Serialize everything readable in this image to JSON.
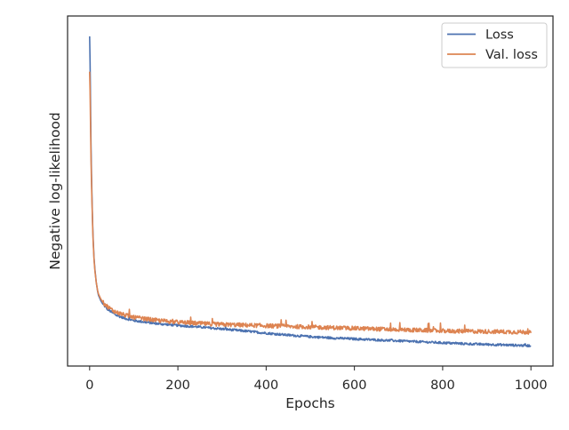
{
  "chart_data": {
    "type": "line",
    "title": "",
    "xlabel": "Epochs",
    "ylabel": "Negative log-likelihood",
    "xlim": [
      -50,
      1050
    ],
    "ylim": [
      0,
      1
    ],
    "xticks": [
      0,
      200,
      400,
      600,
      800,
      1000
    ],
    "xtick_labels": [
      "0",
      "200",
      "400",
      "600",
      "800",
      "1000"
    ],
    "yticks_visible": false,
    "grid": false,
    "legend": {
      "position": "top-right"
    },
    "series": [
      {
        "name": "Loss",
        "color": "#4c72b0",
        "x": [
          0,
          1,
          2,
          3,
          4,
          5,
          6,
          7,
          8,
          10,
          12,
          15,
          18,
          20,
          25,
          30,
          40,
          50,
          60,
          80,
          100,
          150,
          200,
          250,
          300,
          350,
          400,
          450,
          500,
          550,
          600,
          650,
          700,
          750,
          800,
          850,
          900,
          950,
          1000
        ],
        "y": [
          0.97,
          0.89,
          0.77,
          0.64,
          0.56,
          0.49,
          0.43,
          0.38,
          0.34,
          0.28,
          0.245,
          0.205,
          0.178,
          0.165,
          0.149,
          0.137,
          0.122,
          0.112,
          0.103,
          0.093,
          0.086,
          0.077,
          0.071,
          0.066,
          0.06,
          0.054,
          0.047,
          0.041,
          0.036,
          0.032,
          0.029,
          0.026,
          0.023,
          0.02,
          0.017,
          0.014,
          0.012,
          0.01,
          0.008
        ]
      },
      {
        "name": "Val. loss",
        "color": "#dd8452",
        "x": [
          0,
          1,
          2,
          3,
          4,
          5,
          6,
          7,
          8,
          10,
          12,
          15,
          18,
          20,
          25,
          30,
          40,
          50,
          60,
          80,
          100,
          150,
          200,
          250,
          300,
          350,
          400,
          450,
          500,
          550,
          600,
          650,
          700,
          750,
          800,
          850,
          900,
          950,
          1000
        ],
        "y": [
          0.86,
          0.8,
          0.7,
          0.6,
          0.53,
          0.47,
          0.42,
          0.37,
          0.33,
          0.275,
          0.24,
          0.205,
          0.18,
          0.169,
          0.154,
          0.143,
          0.13,
          0.12,
          0.112,
          0.103,
          0.096,
          0.087,
          0.081,
          0.077,
          0.074,
          0.072,
          0.07,
          0.068,
          0.066,
          0.064,
          0.062,
          0.06,
          0.058,
          0.056,
          0.054,
          0.053,
          0.052,
          0.051,
          0.05
        ]
      }
    ]
  }
}
